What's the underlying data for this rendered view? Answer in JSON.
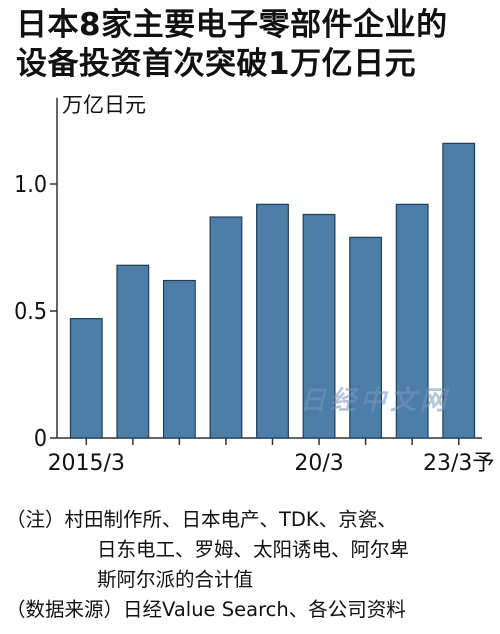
{
  "title_lines": [
    "日本8家主要电子零部件企业的",
    "设备投资首次突破1万亿日元"
  ],
  "chart_data": {
    "type": "bar",
    "unit_label": "万亿日元",
    "categories": [
      "2015/3",
      "",
      "",
      "",
      "",
      "20/3",
      "",
      "",
      "23/3予"
    ],
    "values": [
      0.47,
      0.68,
      0.62,
      0.87,
      0.92,
      0.88,
      0.79,
      0.92,
      1.16
    ],
    "ylim": [
      0,
      1.3
    ],
    "yticks": [
      0,
      0.5,
      1.0
    ],
    "ytick_labels": [
      "0",
      "0.5",
      "1.0"
    ],
    "bar_color": "#4d7ea8",
    "grid": false
  },
  "watermark": "日经中文网",
  "notes": [
    "（注）村田制作所、日本电产、TDK、京瓷、",
    "日东电工、罗姆、太阳诱电、阿尔卑",
    "斯阿尔派的合计值",
    "（数据来源）日经Value Search、各公司资料"
  ]
}
